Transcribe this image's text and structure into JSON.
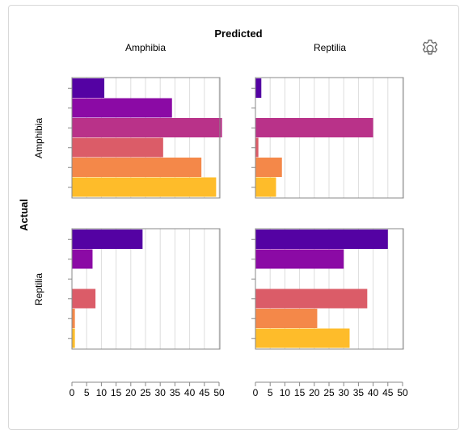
{
  "chart_data": {
    "type": "bar",
    "orientation": "horizontal",
    "layout": "facet-grid",
    "column_title": "Predicted",
    "row_title": "Actual",
    "columns": [
      "Amphibia",
      "Reptilia"
    ],
    "rows": [
      "Amphibia",
      "Reptilia"
    ],
    "xlim": [
      0,
      50
    ],
    "xticks": [
      0,
      5,
      10,
      15,
      20,
      25,
      30,
      35,
      40,
      45,
      50
    ],
    "grid": true,
    "colors": [
      "#5402a3",
      "#8b0aa5",
      "#b93289",
      "#db5c68",
      "#f48849",
      "#febc2a"
    ],
    "panels": [
      {
        "row": "Amphibia",
        "column": "Amphibia",
        "values": [
          11,
          34,
          51,
          31,
          44,
          49
        ]
      },
      {
        "row": "Amphibia",
        "column": "Reptilia",
        "values": [
          2,
          0,
          40,
          1,
          9,
          7
        ]
      },
      {
        "row": "Reptilia",
        "column": "Amphibia",
        "values": [
          24,
          7,
          0,
          8,
          1,
          1
        ]
      },
      {
        "row": "Reptilia",
        "column": "Reptilia",
        "values": [
          45,
          30,
          0,
          38,
          21,
          32
        ]
      }
    ]
  },
  "toolbar": {
    "settings_icon": "gear-icon"
  }
}
